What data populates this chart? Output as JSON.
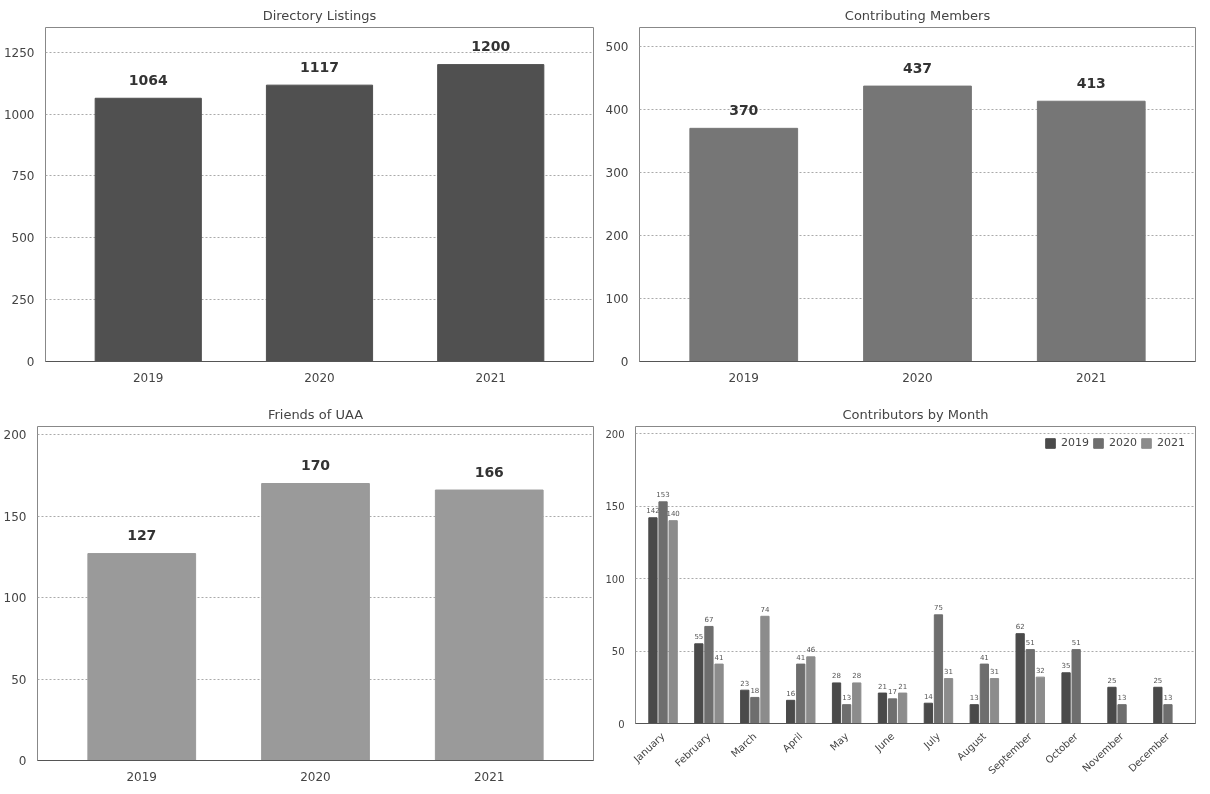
{
  "chart_data": [
    {
      "type": "bar",
      "title": "Directory Listings",
      "categories": [
        "2019",
        "2020",
        "2021"
      ],
      "values": [
        1064,
        1117,
        1200
      ],
      "color": "#505050",
      "ylim": [
        0,
        1350
      ],
      "yticks": [
        0,
        250,
        500,
        750,
        1000,
        1250
      ],
      "grid": "y",
      "data_labels": true
    },
    {
      "type": "bar",
      "title": "Contributing Members",
      "categories": [
        "2019",
        "2020",
        "2021"
      ],
      "values": [
        370,
        437,
        413
      ],
      "color": "#767676",
      "ylim": [
        0,
        530
      ],
      "yticks": [
        0,
        100,
        200,
        300,
        400,
        500
      ],
      "grid": "y",
      "data_labels": true
    },
    {
      "type": "bar",
      "title": "Friends of UAA",
      "categories": [
        "2019",
        "2020",
        "2021"
      ],
      "values": [
        127,
        170,
        166
      ],
      "color": "#9a9a9a",
      "ylim": [
        0,
        205
      ],
      "yticks": [
        0,
        50,
        100,
        150,
        200
      ],
      "grid": "y",
      "data_labels": true
    },
    {
      "type": "bar",
      "title": "Contributors by Month",
      "categories": [
        "January",
        "February",
        "March",
        "April",
        "May",
        "June",
        "July",
        "August",
        "September",
        "October",
        "November",
        "December"
      ],
      "series": [
        {
          "name": "2019",
          "color": "#4a4a4a",
          "values": [
            142,
            55,
            23,
            16,
            28,
            21,
            14,
            13,
            62,
            35,
            25,
            25
          ]
        },
        {
          "name": "2020",
          "color": "#6e6e6e",
          "values": [
            153,
            67,
            18,
            41,
            13,
            17,
            75,
            41,
            51,
            51,
            13,
            13
          ]
        },
        {
          "name": "2021",
          "color": "#8c8c8c",
          "values": [
            140,
            41,
            74,
            46,
            28,
            21,
            31,
            31,
            32,
            null,
            null,
            null
          ]
        }
      ],
      "ylim": [
        0,
        205
      ],
      "yticks": [
        0,
        50,
        100,
        150,
        200
      ],
      "grid": "y",
      "data_labels": true,
      "legend": "top right"
    }
  ]
}
